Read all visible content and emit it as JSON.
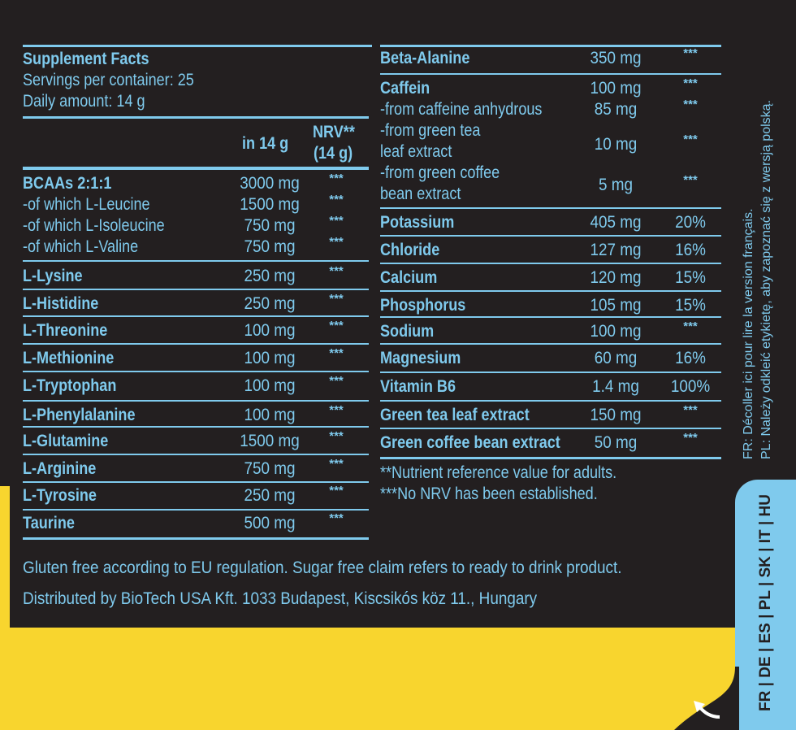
{
  "header": {
    "title": "Supplement Facts",
    "servings": "Servings per container: 25",
    "daily": "Daily amount: 14 g",
    "col_amount": "in 14 g",
    "col_nrv_1": "NRV**",
    "col_nrv_2": "(14 g)"
  },
  "left_rows": [
    {
      "name": "BCAAs 2:1:1",
      "amount": "3000 mg",
      "nrv": "***"
    },
    {
      "name": "-of which L-Leucine",
      "amount": "1500 mg",
      "nrv": "***"
    },
    {
      "name": "-of which L-Isoleucine",
      "amount": "750 mg",
      "nrv": "***"
    },
    {
      "name": "-of which L-Valine",
      "amount": "750 mg",
      "nrv": "***"
    },
    {
      "name": "L-Lysine",
      "amount": "250 mg",
      "nrv": "***"
    },
    {
      "name": "L-Histidine",
      "amount": "250 mg",
      "nrv": "***"
    },
    {
      "name": "L-Threonine",
      "amount": "100 mg",
      "nrv": "***"
    },
    {
      "name": "L-Methionine",
      "amount": "100 mg",
      "nrv": "***"
    },
    {
      "name": "L-Tryptophan",
      "amount": "100 mg",
      "nrv": "***"
    },
    {
      "name": "L-Phenylalanine",
      "amount": "100 mg",
      "nrv": "***"
    },
    {
      "name": "L-Glutamine",
      "amount": "1500 mg",
      "nrv": "***"
    },
    {
      "name": "L-Arginine",
      "amount": "750 mg",
      "nrv": "***"
    },
    {
      "name": "L-Tyrosine",
      "amount": "250 mg",
      "nrv": "***"
    },
    {
      "name": "Taurine",
      "amount": "500 mg",
      "nrv": "***"
    }
  ],
  "right_rows": [
    {
      "name": "Beta-Alanine",
      "amount": "350 mg",
      "nrv": "***"
    },
    {
      "name": "Caffein",
      "amount": "100 mg",
      "nrv": "***"
    },
    {
      "name": "-from caffeine anhydrous",
      "amount": "85 mg",
      "nrv": "***"
    },
    {
      "name": "-from green tea",
      "name2": "leaf extract",
      "amount": "10 mg",
      "nrv": "***"
    },
    {
      "name": "-from green coffee",
      "name2": "bean extract",
      "amount": "5 mg",
      "nrv": "***"
    },
    {
      "name": "Potassium",
      "amount": "405 mg",
      "nrv": "20%"
    },
    {
      "name": "Chloride",
      "amount": "127 mg",
      "nrv": "16%"
    },
    {
      "name": "Calcium",
      "amount": "120 mg",
      "nrv": "15%"
    },
    {
      "name": "Phosphorus",
      "amount": "105 mg",
      "nrv": "15%"
    },
    {
      "name": "Sodium",
      "amount": "100 mg",
      "nrv": "***"
    },
    {
      "name": "Magnesium",
      "amount": "60 mg",
      "nrv": "16%"
    },
    {
      "name": "Vitamin B6",
      "amount": "1.4 mg",
      "nrv": "100%"
    },
    {
      "name": "Green tea leaf extract",
      "amount": "150 mg",
      "nrv": "***"
    },
    {
      "name": "Green coffee bean extract",
      "amount": "50 mg",
      "nrv": "***"
    }
  ],
  "notes": {
    "nrv_note": "**Nutrient reference value for adults.",
    "no_nrv_note": "***No NRV has been established."
  },
  "footer": {
    "gluten": "Gluten free according to EU regulation. Sugar free claim refers to ready to drink product.",
    "distributor": "Distributed by BioTech USA Kft. 1033 Budapest, Kiscsikós köz 11., Hungary"
  },
  "side": {
    "fr": "FR: Décoller ici pour lire la version français.",
    "pl": "PL: Należy odkleić etykietę, aby zapoznać się z wersją polską.",
    "languages": "FR | DE | ES | PL | SK | IT | HU"
  },
  "colors": {
    "text": "#7fcaed",
    "background": "#231f20",
    "yellow": "#f8d52e"
  }
}
